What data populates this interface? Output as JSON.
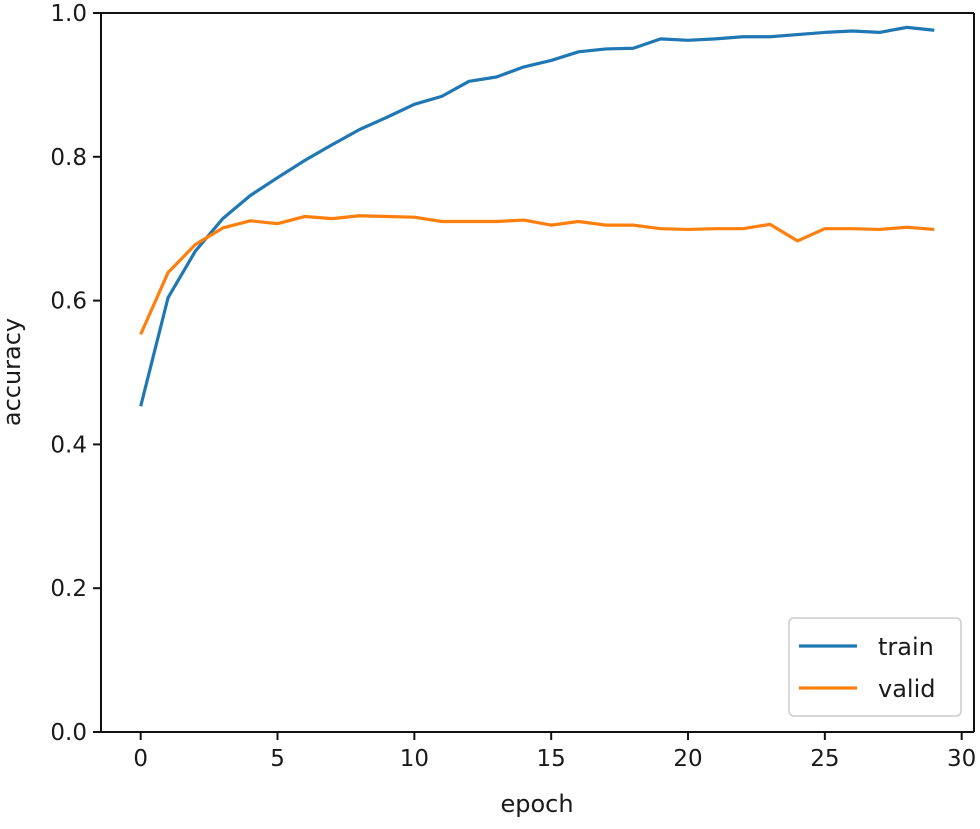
{
  "chart_data": {
    "type": "line",
    "title": "",
    "xlabel": "epoch",
    "ylabel": "accuracy",
    "xlim": [
      -1.45,
      30.45
    ],
    "ylim": [
      0.0,
      1.0
    ],
    "xticks": [
      0,
      5,
      10,
      15,
      20,
      25,
      30
    ],
    "yticks": [
      0.0,
      0.2,
      0.4,
      0.6,
      0.8,
      1.0
    ],
    "xtick_labels": [
      "0",
      "5",
      "10",
      "15",
      "20",
      "25",
      "30"
    ],
    "ytick_labels": [
      "0.0",
      "0.2",
      "0.4",
      "0.6",
      "0.8",
      "1.0"
    ],
    "grid": false,
    "legend_position": "lower right",
    "x": [
      0,
      1,
      2,
      3,
      4,
      5,
      6,
      7,
      8,
      9,
      10,
      11,
      12,
      13,
      14,
      15,
      16,
      17,
      18,
      19,
      20,
      21,
      22,
      23,
      24,
      25,
      26,
      27,
      28,
      29
    ],
    "series": [
      {
        "name": "train",
        "color": "#1f77b4",
        "values": [
          0.453,
          0.604,
          0.669,
          0.714,
          0.746,
          0.771,
          0.795,
          0.817,
          0.838,
          0.855,
          0.873,
          0.884,
          0.905,
          0.911,
          0.925,
          0.934,
          0.946,
          0.95,
          0.951,
          0.964,
          0.962,
          0.964,
          0.967,
          0.967,
          0.97,
          0.973,
          0.975,
          0.973,
          0.98,
          0.976
        ]
      },
      {
        "name": "valid",
        "color": "#ff7f0e",
        "values": [
          0.553,
          0.639,
          0.678,
          0.701,
          0.711,
          0.707,
          0.717,
          0.714,
          0.718,
          0.717,
          0.716,
          0.71,
          0.71,
          0.71,
          0.712,
          0.705,
          0.71,
          0.705,
          0.705,
          0.7,
          0.699,
          0.7,
          0.7,
          0.706,
          0.683,
          0.7,
          0.7,
          0.699,
          0.702,
          0.699
        ]
      }
    ]
  }
}
